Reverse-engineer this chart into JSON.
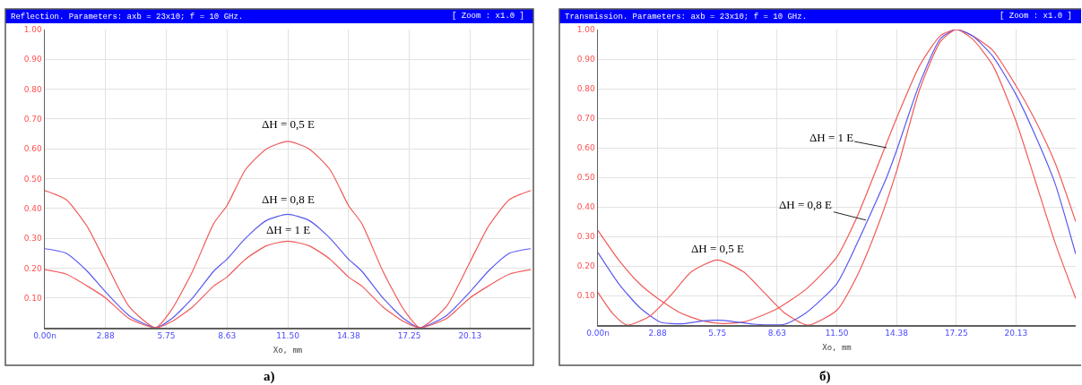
{
  "chart_data": [
    {
      "type": "line",
      "title": "Reflection. Parameters: axb = 23x10; f = 10 GHz.",
      "xlabel": "Xo, mm",
      "annotations": [
        "[ Zoom : x1.0 ]",
        "а)",
        {
          "text": "ΔH = 0,5 E",
          "x": 11.5,
          "y": 0.625
        },
        {
          "text": "ΔH = 0,8 E",
          "x": 11.5,
          "y": 0.38
        },
        {
          "text": "ΔH = 1 E",
          "x": 11.5,
          "y": 0.29
        }
      ],
      "x": [
        0,
        1,
        2,
        2.875,
        4,
        5.24,
        6,
        7,
        8,
        8.625,
        9.5,
        10.5,
        11.5,
        12.5,
        13.5,
        14.375,
        15,
        16,
        17,
        17.76,
        19,
        20.125,
        21,
        22,
        23
      ],
      "series": [
        {
          "color": "#f05a5a",
          "values": [
            0.46,
            0.43,
            0.34,
            0.22,
            0.07,
            0,
            0.06,
            0.19,
            0.35,
            0.41,
            0.53,
            0.6,
            0.625,
            0.6,
            0.53,
            0.41,
            0.35,
            0.19,
            0.06,
            0,
            0.07,
            0.22,
            0.34,
            0.43,
            0.46
          ]
        },
        {
          "color": "#5a5af0",
          "values": [
            0.265,
            0.25,
            0.19,
            0.12,
            0.04,
            0,
            0.03,
            0.1,
            0.19,
            0.23,
            0.3,
            0.36,
            0.38,
            0.36,
            0.3,
            0.23,
            0.19,
            0.1,
            0.03,
            0,
            0.04,
            0.12,
            0.19,
            0.25,
            0.265
          ]
        },
        {
          "color": "#f05a5a",
          "values": [
            0.195,
            0.18,
            0.14,
            0.1,
            0.03,
            0,
            0.02,
            0.07,
            0.14,
            0.17,
            0.23,
            0.275,
            0.29,
            0.275,
            0.23,
            0.17,
            0.14,
            0.07,
            0.02,
            0,
            0.03,
            0.1,
            0.14,
            0.18,
            0.195
          ]
        }
      ],
      "xlim": [
        0,
        23
      ],
      "xticks": [
        {
          "value": 0,
          "label": "0.00n"
        },
        {
          "value": 2.875,
          "label": "2.88"
        },
        {
          "value": 5.75,
          "label": "5.75"
        },
        {
          "value": 8.625,
          "label": "8.63"
        },
        {
          "value": 11.5,
          "label": "11.50"
        },
        {
          "value": 14.375,
          "label": "14.38"
        },
        {
          "value": 17.25,
          "label": "17.25"
        },
        {
          "value": 20.125,
          "label": "20.13"
        }
      ],
      "ylim": [
        0,
        1
      ],
      "yticks": [
        {
          "value": 0.1,
          "label": "0.10"
        },
        {
          "value": 0.2,
          "label": "0.20"
        },
        {
          "value": 0.3,
          "label": "0.30"
        },
        {
          "value": 0.4,
          "label": "0.40"
        },
        {
          "value": 0.5,
          "label": "0.50"
        },
        {
          "value": 0.6,
          "label": "0.60"
        },
        {
          "value": 0.7,
          "label": "0.70"
        },
        {
          "value": 0.8,
          "label": "0.80"
        },
        {
          "value": 0.9,
          "label": "0.90"
        },
        {
          "value": 1,
          "label": "1.00"
        }
      ],
      "grid": true,
      "marker": "none",
      "line_style": "solid"
    },
    {
      "type": "line",
      "title": "Transmission. Parameters: axb = 23x10; f = 10 GHz.",
      "xlabel": "Xo, mm",
      "annotations": [
        "[ Zoom : x1.0 ]",
        "б)",
        {
          "text": "ΔH = 1 E",
          "x": 13.9,
          "y": 0.6
        },
        {
          "text": "ΔH = 0,8 E",
          "x": 12.9,
          "y": 0.355
        },
        {
          "text": "ΔH = 0,5 E",
          "x": 5.75,
          "y": 0.22
        }
      ],
      "series": [
        {
          "color": "#f05a5a",
          "x": [
            0,
            1,
            2,
            2.875,
            4,
            5,
            6,
            7,
            8,
            8.625,
            10,
            11.5,
            12.5,
            13.25,
            14.375,
            15.5,
            16.5,
            17.25,
            18,
            19,
            20.125,
            21,
            22,
            23
          ],
          "values": [
            0.32,
            0.22,
            0.14,
            0.09,
            0.04,
            0.015,
            0.005,
            0.01,
            0.035,
            0.055,
            0.12,
            0.23,
            0.37,
            0.5,
            0.7,
            0.88,
            0.98,
            1,
            0.98,
            0.93,
            0.81,
            0.7,
            0.55,
            0.35
          ]
        },
        {
          "color": "#5a5af0",
          "x": [
            0,
            1,
            2,
            3,
            4,
            5,
            5.75,
            6.5,
            7.5,
            9,
            10,
            11.5,
            12.5,
            13.9,
            14.375,
            15.5,
            16.5,
            17.25,
            18,
            19,
            20.125,
            21,
            22,
            23
          ],
          "values": [
            0.245,
            0.14,
            0.06,
            0.01,
            0.004,
            0.013,
            0.016,
            0.012,
            0.003,
            0.003,
            0.04,
            0.14,
            0.28,
            0.5,
            0.59,
            0.82,
            0.97,
            1,
            0.98,
            0.91,
            0.78,
            0.65,
            0.48,
            0.24
          ]
        },
        {
          "color": "#f05a5a",
          "x": [
            0,
            0.7,
            1.4,
            2.5,
            3.5,
            4.5,
            5.75,
            7,
            8,
            9,
            10.1,
            11.5,
            12.5,
            13.5,
            14.375,
            15.5,
            16.5,
            17.25,
            18,
            19,
            20.125,
            21,
            22,
            23
          ],
          "values": [
            0.11,
            0.04,
            0,
            0.03,
            0.1,
            0.18,
            0.22,
            0.18,
            0.11,
            0.04,
            0,
            0.05,
            0.17,
            0.34,
            0.52,
            0.8,
            0.96,
            1,
            0.97,
            0.88,
            0.69,
            0.5,
            0.28,
            0.09
          ]
        }
      ],
      "xlim": [
        0,
        23
      ],
      "xticks": [
        {
          "value": 0,
          "label": "0.00n"
        },
        {
          "value": 2.875,
          "label": "2.88"
        },
        {
          "value": 5.75,
          "label": "5.75"
        },
        {
          "value": 8.625,
          "label": "8.63"
        },
        {
          "value": 11.5,
          "label": "11.50"
        },
        {
          "value": 14.375,
          "label": "14.38"
        },
        {
          "value": 17.25,
          "label": "17.25"
        },
        {
          "value": 20.125,
          "label": "20.13"
        }
      ],
      "ylim": [
        0,
        1
      ],
      "yticks": [
        {
          "value": 0.1,
          "label": "0.10"
        },
        {
          "value": 0.2,
          "label": "0.20"
        },
        {
          "value": 0.3,
          "label": "0.30"
        },
        {
          "value": 0.4,
          "label": "0.40"
        },
        {
          "value": 0.5,
          "label": "0.50"
        },
        {
          "value": 0.6,
          "label": "0.60"
        },
        {
          "value": 0.7,
          "label": "0.70"
        },
        {
          "value": 0.8,
          "label": "0.80"
        },
        {
          "value": 0.9,
          "label": "0.90"
        },
        {
          "value": 1,
          "label": "1.00"
        }
      ],
      "grid": true,
      "marker": "none",
      "line_style": "solid"
    }
  ]
}
